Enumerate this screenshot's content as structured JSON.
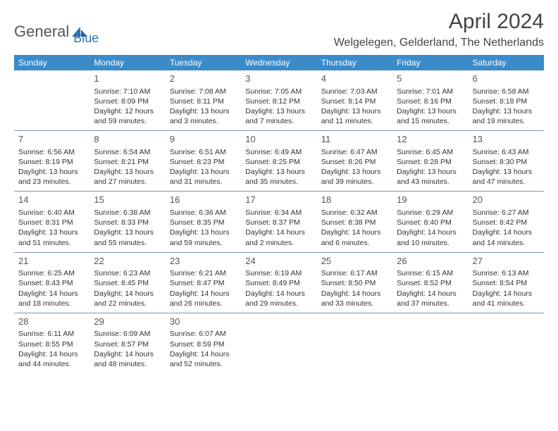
{
  "logo": {
    "brand1": "General",
    "brand2": "Blue",
    "brand1_color": "#6a6a6a",
    "brand2_color": "#2b72b8"
  },
  "title": "April 2024",
  "location": "Welgelegen, Gelderland, The Netherlands",
  "colors": {
    "header_bg": "#3b8bc9",
    "header_fg": "#ffffff",
    "grid_line": "#7a99b3",
    "text": "#333333"
  },
  "days": [
    "Sunday",
    "Monday",
    "Tuesday",
    "Wednesday",
    "Thursday",
    "Friday",
    "Saturday"
  ],
  "weeks": [
    [
      null,
      {
        "n": "1",
        "sunrise": "Sunrise: 7:10 AM",
        "sunset": "Sunset: 8:09 PM",
        "day1": "Daylight: 12 hours",
        "day2": "and 59 minutes."
      },
      {
        "n": "2",
        "sunrise": "Sunrise: 7:08 AM",
        "sunset": "Sunset: 8:11 PM",
        "day1": "Daylight: 13 hours",
        "day2": "and 3 minutes."
      },
      {
        "n": "3",
        "sunrise": "Sunrise: 7:05 AM",
        "sunset": "Sunset: 8:12 PM",
        "day1": "Daylight: 13 hours",
        "day2": "and 7 minutes."
      },
      {
        "n": "4",
        "sunrise": "Sunrise: 7:03 AM",
        "sunset": "Sunset: 8:14 PM",
        "day1": "Daylight: 13 hours",
        "day2": "and 11 minutes."
      },
      {
        "n": "5",
        "sunrise": "Sunrise: 7:01 AM",
        "sunset": "Sunset: 8:16 PM",
        "day1": "Daylight: 13 hours",
        "day2": "and 15 minutes."
      },
      {
        "n": "6",
        "sunrise": "Sunrise: 6:58 AM",
        "sunset": "Sunset: 8:18 PM",
        "day1": "Daylight: 13 hours",
        "day2": "and 19 minutes."
      }
    ],
    [
      {
        "n": "7",
        "sunrise": "Sunrise: 6:56 AM",
        "sunset": "Sunset: 8:19 PM",
        "day1": "Daylight: 13 hours",
        "day2": "and 23 minutes."
      },
      {
        "n": "8",
        "sunrise": "Sunrise: 6:54 AM",
        "sunset": "Sunset: 8:21 PM",
        "day1": "Daylight: 13 hours",
        "day2": "and 27 minutes."
      },
      {
        "n": "9",
        "sunrise": "Sunrise: 6:51 AM",
        "sunset": "Sunset: 8:23 PM",
        "day1": "Daylight: 13 hours",
        "day2": "and 31 minutes."
      },
      {
        "n": "10",
        "sunrise": "Sunrise: 6:49 AM",
        "sunset": "Sunset: 8:25 PM",
        "day1": "Daylight: 13 hours",
        "day2": "and 35 minutes."
      },
      {
        "n": "11",
        "sunrise": "Sunrise: 6:47 AM",
        "sunset": "Sunset: 8:26 PM",
        "day1": "Daylight: 13 hours",
        "day2": "and 39 minutes."
      },
      {
        "n": "12",
        "sunrise": "Sunrise: 6:45 AM",
        "sunset": "Sunset: 8:28 PM",
        "day1": "Daylight: 13 hours",
        "day2": "and 43 minutes."
      },
      {
        "n": "13",
        "sunrise": "Sunrise: 6:43 AM",
        "sunset": "Sunset: 8:30 PM",
        "day1": "Daylight: 13 hours",
        "day2": "and 47 minutes."
      }
    ],
    [
      {
        "n": "14",
        "sunrise": "Sunrise: 6:40 AM",
        "sunset": "Sunset: 8:31 PM",
        "day1": "Daylight: 13 hours",
        "day2": "and 51 minutes."
      },
      {
        "n": "15",
        "sunrise": "Sunrise: 6:38 AM",
        "sunset": "Sunset: 8:33 PM",
        "day1": "Daylight: 13 hours",
        "day2": "and 55 minutes."
      },
      {
        "n": "16",
        "sunrise": "Sunrise: 6:36 AM",
        "sunset": "Sunset: 8:35 PM",
        "day1": "Daylight: 13 hours",
        "day2": "and 59 minutes."
      },
      {
        "n": "17",
        "sunrise": "Sunrise: 6:34 AM",
        "sunset": "Sunset: 8:37 PM",
        "day1": "Daylight: 14 hours",
        "day2": "and 2 minutes."
      },
      {
        "n": "18",
        "sunrise": "Sunrise: 6:32 AM",
        "sunset": "Sunset: 8:38 PM",
        "day1": "Daylight: 14 hours",
        "day2": "and 6 minutes."
      },
      {
        "n": "19",
        "sunrise": "Sunrise: 6:29 AM",
        "sunset": "Sunset: 8:40 PM",
        "day1": "Daylight: 14 hours",
        "day2": "and 10 minutes."
      },
      {
        "n": "20",
        "sunrise": "Sunrise: 6:27 AM",
        "sunset": "Sunset: 8:42 PM",
        "day1": "Daylight: 14 hours",
        "day2": "and 14 minutes."
      }
    ],
    [
      {
        "n": "21",
        "sunrise": "Sunrise: 6:25 AM",
        "sunset": "Sunset: 8:43 PM",
        "day1": "Daylight: 14 hours",
        "day2": "and 18 minutes."
      },
      {
        "n": "22",
        "sunrise": "Sunrise: 6:23 AM",
        "sunset": "Sunset: 8:45 PM",
        "day1": "Daylight: 14 hours",
        "day2": "and 22 minutes."
      },
      {
        "n": "23",
        "sunrise": "Sunrise: 6:21 AM",
        "sunset": "Sunset: 8:47 PM",
        "day1": "Daylight: 14 hours",
        "day2": "and 26 minutes."
      },
      {
        "n": "24",
        "sunrise": "Sunrise: 6:19 AM",
        "sunset": "Sunset: 8:49 PM",
        "day1": "Daylight: 14 hours",
        "day2": "and 29 minutes."
      },
      {
        "n": "25",
        "sunrise": "Sunrise: 6:17 AM",
        "sunset": "Sunset: 8:50 PM",
        "day1": "Daylight: 14 hours",
        "day2": "and 33 minutes."
      },
      {
        "n": "26",
        "sunrise": "Sunrise: 6:15 AM",
        "sunset": "Sunset: 8:52 PM",
        "day1": "Daylight: 14 hours",
        "day2": "and 37 minutes."
      },
      {
        "n": "27",
        "sunrise": "Sunrise: 6:13 AM",
        "sunset": "Sunset: 8:54 PM",
        "day1": "Daylight: 14 hours",
        "day2": "and 41 minutes."
      }
    ],
    [
      {
        "n": "28",
        "sunrise": "Sunrise: 6:11 AM",
        "sunset": "Sunset: 8:55 PM",
        "day1": "Daylight: 14 hours",
        "day2": "and 44 minutes."
      },
      {
        "n": "29",
        "sunrise": "Sunrise: 6:09 AM",
        "sunset": "Sunset: 8:57 PM",
        "day1": "Daylight: 14 hours",
        "day2": "and 48 minutes."
      },
      {
        "n": "30",
        "sunrise": "Sunrise: 6:07 AM",
        "sunset": "Sunset: 8:59 PM",
        "day1": "Daylight: 14 hours",
        "day2": "and 52 minutes."
      },
      null,
      null,
      null,
      null
    ]
  ]
}
